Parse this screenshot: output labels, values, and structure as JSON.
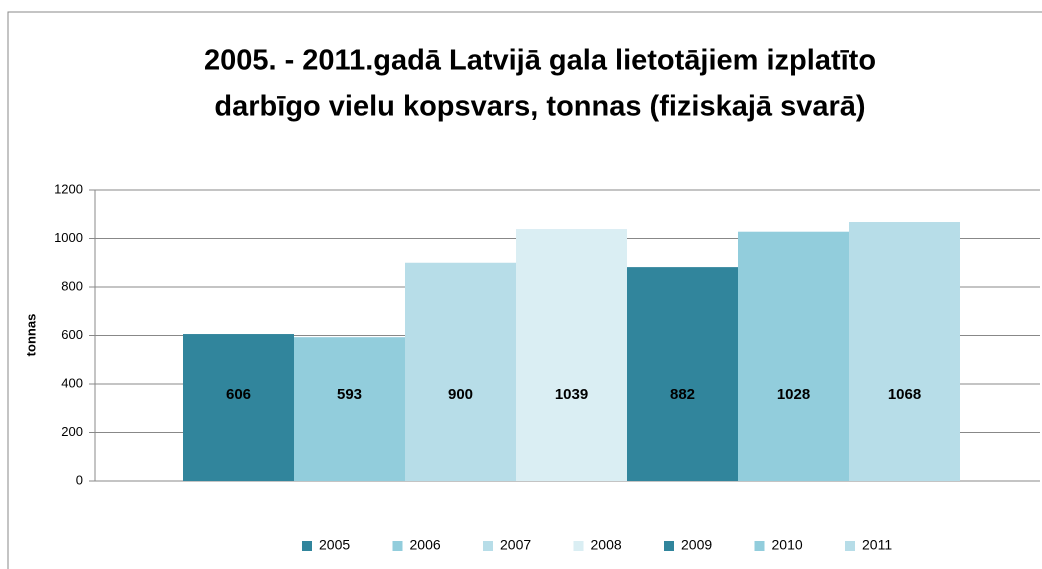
{
  "chart_data": {
    "type": "bar",
    "title": [
      "2005. - 2011.gadā Latvijā gala  lietotājiem  izplatīto",
      "darbīgo vielu kopsvars, tonnas (fiziskajā svarā)"
    ],
    "y_label": "tonnas",
    "categories": [
      null
    ],
    "series": [
      {
        "name": "2005",
        "color": "#31859c",
        "values": [
          606
        ]
      },
      {
        "name": "2006",
        "color": "#92cddc",
        "values": [
          593
        ]
      },
      {
        "name": "2007",
        "color": "#b7dde8",
        "values": [
          900
        ]
      },
      {
        "name": "2008",
        "color": "#daeef3",
        "values": [
          1039
        ]
      },
      {
        "name": "2009",
        "color": "#31859c",
        "values": [
          882
        ]
      },
      {
        "name": "2010",
        "color": "#92cddc",
        "values": [
          1028
        ]
      },
      {
        "name": "2011",
        "color": "#b7dde8",
        "values": [
          1068
        ]
      }
    ],
    "ylim": [
      0,
      1200
    ],
    "yticks": [
      0,
      200,
      400,
      600,
      800,
      1000,
      1200
    ],
    "grid": true,
    "legend": "bottom"
  }
}
